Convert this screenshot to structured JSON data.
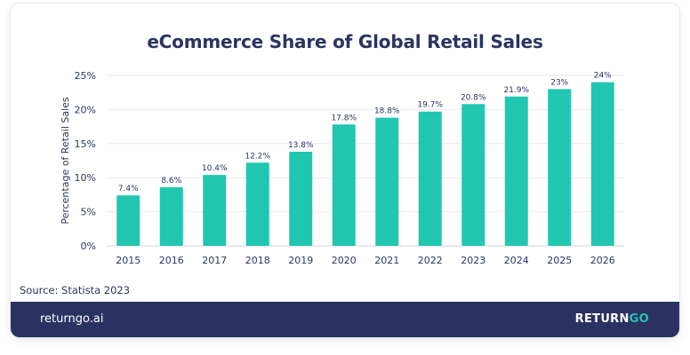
{
  "card": {
    "title": "eCommerce Share of Global Retail Sales",
    "source": "Source: Statista 2023"
  },
  "footer": {
    "url": "returngo.ai",
    "logo_main": "RETURN",
    "logo_accent": "GO"
  },
  "colors": {
    "bar": "#21c7b1",
    "text": "#2c3560",
    "footer_bg": "#2b3262",
    "grid": "#e9e9ef"
  },
  "chart_data": {
    "type": "bar",
    "title": "eCommerce Share of Global Retail Sales",
    "xlabel": "",
    "ylabel": "Percentage of Retail Sales",
    "categories": [
      "2015",
      "2016",
      "2017",
      "2018",
      "2019",
      "2020",
      "2021",
      "2022",
      "2023",
      "2024",
      "2025",
      "2026"
    ],
    "values": [
      7.4,
      8.6,
      10.4,
      12.2,
      13.8,
      17.8,
      18.8,
      19.7,
      20.8,
      21.9,
      23,
      24
    ],
    "data_labels": [
      "7.4%",
      "8.6%",
      "10.4%",
      "12.2%",
      "13.8%",
      "17.8%",
      "18.8%",
      "19.7%",
      "20.8%",
      "21.9%",
      "23%",
      "24%"
    ],
    "ylim": [
      0,
      25
    ],
    "yticks": [
      0,
      5,
      10,
      15,
      20,
      25
    ],
    "ytick_labels": [
      "0%",
      "5%",
      "10%",
      "15%",
      "20%",
      "25%"
    ],
    "grid": true,
    "legend": "none"
  }
}
